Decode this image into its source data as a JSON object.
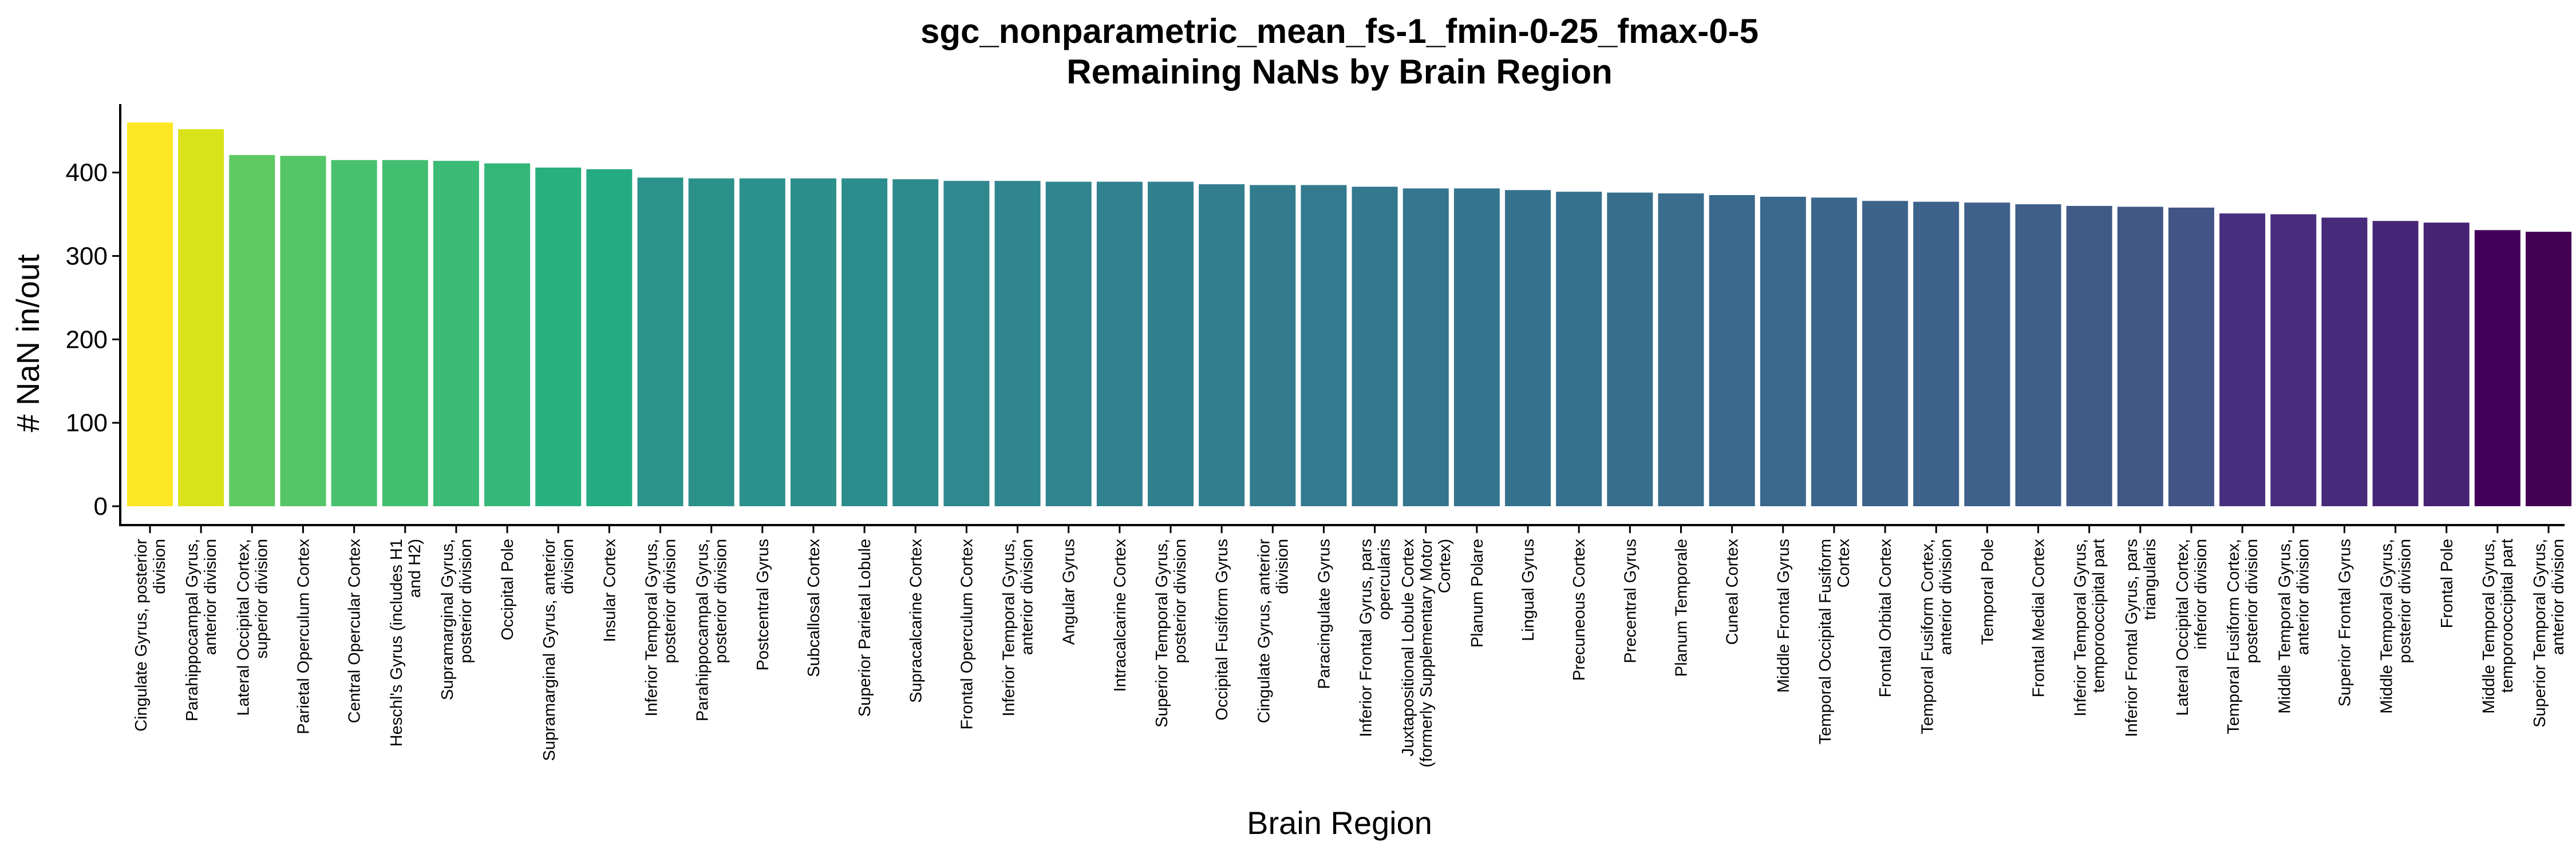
{
  "chart_data": {
    "type": "bar",
    "title": "sgc_nonparametric_mean_fs-1_fmin-0-25_fmax-0-5",
    "subtitle": "Remaining NaNs by Brain Region",
    "xlabel": "Brain Region",
    "ylabel": "# NaN in/out",
    "ylim": [
      0,
      480
    ],
    "yticks": [
      0,
      100,
      200,
      300,
      400
    ],
    "grid": false,
    "legend": "none",
    "colormap": "viridis",
    "categories": [
      "Cingulate Gyrus, posterior division",
      "Parahippocampal Gyrus, anterior division",
      "Lateral Occipital Cortex, superior division",
      "Parietal Operculum Cortex",
      "Central Opercular Cortex",
      "Heschl's Gyrus (includes H1 and H2)",
      "Supramarginal Gyrus, posterior division",
      "Occipital Pole",
      "Supramarginal Gyrus, anterior division",
      "Insular Cortex",
      "Inferior Temporal Gyrus, posterior division",
      "Parahippocampal Gyrus, posterior division",
      "Postcentral Gyrus",
      "Subcallosal Cortex",
      "Superior Parietal Lobule",
      "Supracalcarine Cortex",
      "Frontal Operculum Cortex",
      "Inferior Temporal Gyrus, anterior division",
      "Angular Gyrus",
      "Intracalcarine Cortex",
      "Superior Temporal Gyrus, posterior division",
      "Occipital Fusiform Gyrus",
      "Cingulate Gyrus, anterior division",
      "Paracingulate Gyrus",
      "Inferior Frontal Gyrus, pars opercularis",
      "Juxtapositional Lobule Cortex (formerly Supplementary Motor Cortex)",
      "Planum Polare",
      "Lingual Gyrus",
      "Precuneous Cortex",
      "Precentral Gyrus",
      "Planum Temporale",
      "Cuneal Cortex",
      "Middle Frontal Gyrus",
      "Temporal Occipital Fusiform Cortex",
      "Frontal Orbital Cortex",
      "Temporal Fusiform Cortex, anterior division",
      "Temporal Pole",
      "Frontal Medial Cortex",
      "Inferior Temporal Gyrus, temporooccipital part",
      "Inferior Frontal Gyrus, pars triangularis",
      "Lateral Occipital Cortex, inferior division",
      "Temporal Fusiform Cortex, posterior division",
      "Middle Temporal Gyrus, anterior division",
      "Superior Frontal Gyrus",
      "Middle Temporal Gyrus, posterior division",
      "Frontal Pole",
      "Middle Temporal Gyrus, temporooccipital part",
      "Superior Temporal Gyrus, anterior division"
    ],
    "tick_lines": [
      [
        "Cingulate Gyrus, posterior",
        "division"
      ],
      [
        "Parahippocampal Gyrus,",
        "anterior division"
      ],
      [
        "Lateral Occipital Cortex,",
        "superior division"
      ],
      [
        "Parietal Operculum Cortex"
      ],
      [
        "Central Opercular Cortex"
      ],
      [
        "Heschl's Gyrus (includes H1",
        "and H2)"
      ],
      [
        "Supramarginal Gyrus,",
        "posterior division"
      ],
      [
        "Occipital Pole"
      ],
      [
        "Supramarginal Gyrus, anterior",
        "division"
      ],
      [
        "Insular Cortex"
      ],
      [
        "Inferior Temporal Gyrus,",
        "posterior division"
      ],
      [
        "Parahippocampal Gyrus,",
        "posterior division"
      ],
      [
        "Postcentral Gyrus"
      ],
      [
        "Subcallosal Cortex"
      ],
      [
        "Superior Parietal Lobule"
      ],
      [
        "Supracalcarine Cortex"
      ],
      [
        "Frontal Operculum Cortex"
      ],
      [
        "Inferior Temporal Gyrus,",
        "anterior division"
      ],
      [
        "Angular Gyrus"
      ],
      [
        "Intracalcarine Cortex"
      ],
      [
        "Superior Temporal Gyrus,",
        "posterior division"
      ],
      [
        "Occipital Fusiform Gyrus"
      ],
      [
        "Cingulate Gyrus, anterior",
        "division"
      ],
      [
        "Paracingulate Gyrus"
      ],
      [
        "Inferior Frontal Gyrus, pars",
        "opercularis"
      ],
      [
        "Juxtapositional Lobule Cortex",
        "(formerly Supplementary Motor",
        "Cortex)"
      ],
      [
        "Planum Polare"
      ],
      [
        "Lingual Gyrus"
      ],
      [
        "Precuneous Cortex"
      ],
      [
        "Precentral Gyrus"
      ],
      [
        "Planum Temporale"
      ],
      [
        "Cuneal Cortex"
      ],
      [
        "Middle Frontal Gyrus"
      ],
      [
        "Temporal Occipital Fusiform",
        "Cortex"
      ],
      [
        "Frontal Orbital Cortex"
      ],
      [
        "Temporal Fusiform Cortex,",
        "anterior division"
      ],
      [
        "Temporal Pole"
      ],
      [
        "Frontal Medial Cortex"
      ],
      [
        "Inferior Temporal Gyrus,",
        "temporooccipital part"
      ],
      [
        "Inferior Frontal Gyrus, pars",
        "triangularis"
      ],
      [
        "Lateral Occipital Cortex,",
        "inferior division"
      ],
      [
        "Temporal Fusiform Cortex,",
        "posterior division"
      ],
      [
        "Middle Temporal Gyrus,",
        "anterior division"
      ],
      [
        "Superior Frontal Gyrus"
      ],
      [
        "Middle Temporal Gyrus,",
        "posterior division"
      ],
      [
        "Frontal Pole"
      ],
      [
        "Middle Temporal Gyrus,",
        "temporooccipital part"
      ],
      [
        "Superior Temporal Gyrus,",
        "anterior division"
      ]
    ],
    "values": [
      460,
      452,
      421,
      420,
      415,
      415,
      414,
      411,
      406,
      404,
      394,
      393,
      393,
      393,
      393,
      392,
      390,
      390,
      389,
      389,
      389,
      386,
      385,
      385,
      383,
      381,
      381,
      379,
      377,
      376,
      375,
      373,
      371,
      370,
      366,
      365,
      364,
      362,
      360,
      359,
      358,
      351,
      350,
      346,
      342,
      340,
      331,
      329
    ],
    "colors": [
      "#fde725",
      "#dae319",
      "#5ec962",
      "#55c667",
      "#48c16e",
      "#42be71",
      "#3bbb75",
      "#34b679",
      "#2ab07f",
      "#25ab82",
      "#2b938b",
      "#2c918b",
      "#2c908c",
      "#2d8e8c",
      "#2d8c8d",
      "#2e8a8d",
      "#2f888d",
      "#2f868e",
      "#30848e",
      "#30828e",
      "#31808e",
      "#327e8e",
      "#327c8e",
      "#337a8e",
      "#34788e",
      "#35768e",
      "#35748e",
      "#36728e",
      "#37708e",
      "#386e8d",
      "#396c8d",
      "#396a8d",
      "#3a688c",
      "#3b668c",
      "#3c648b",
      "#3d628b",
      "#3e608a",
      "#3f5e89",
      "#405b88",
      "#415887",
      "#425586",
      "#472f7d",
      "#472d7b",
      "#472a7a",
      "#482677",
      "#482374",
      "#44015a",
      "#440154"
    ]
  }
}
